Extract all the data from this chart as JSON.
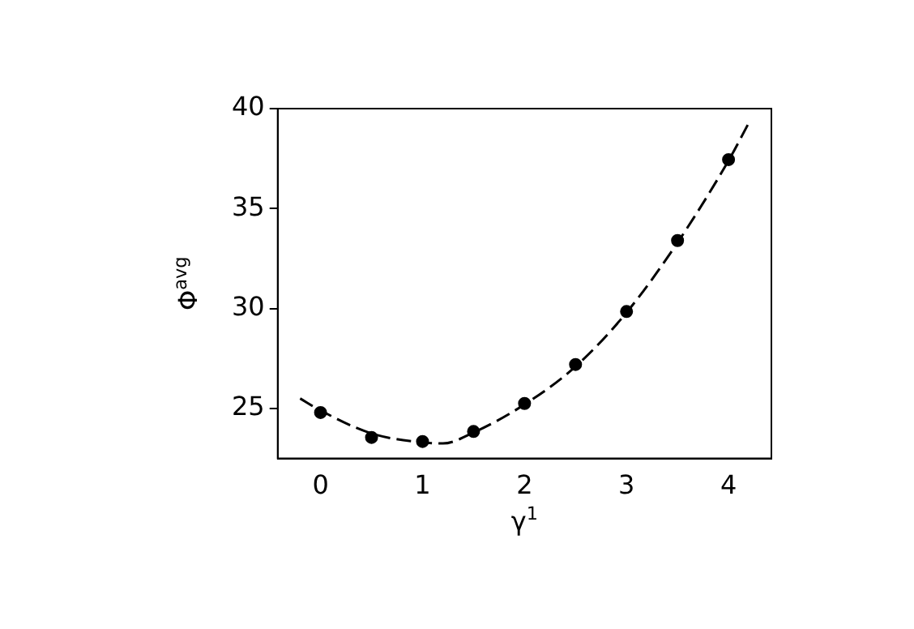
{
  "chart_data": {
    "type": "scatter",
    "xlabel": "γ$^{1}$",
    "ylabel": "Φ$^{avg}$",
    "xlim": [
      -0.42,
      4.42
    ],
    "ylim": [
      22.5,
      40
    ],
    "xticks": [
      0,
      1,
      2,
      3,
      4
    ],
    "yticks": [
      25,
      30,
      35,
      40
    ],
    "grid": false,
    "legend": false,
    "series": [
      {
        "color": "#000000",
        "marker": "circle",
        "x": [
          0,
          0.5,
          1,
          1.5,
          2,
          2.5,
          3,
          3.5,
          4
        ],
        "values": [
          24.8,
          23.55,
          23.35,
          23.85,
          25.25,
          27.2,
          29.85,
          33.4,
          37.45
        ]
      },
      {
        "type": "line",
        "color": "#000000",
        "marker": "none",
        "line_style": "dashed",
        "x": [
          -0.2,
          0,
          0.5,
          1,
          1.2,
          1.5,
          2,
          2.5,
          3,
          3.5,
          4,
          4.2
        ],
        "values": [
          25.5,
          24.9,
          23.75,
          23.3,
          23.25,
          23.8,
          25.2,
          27.1,
          29.8,
          33.3,
          37.4,
          39.3
        ]
      }
    ]
  }
}
